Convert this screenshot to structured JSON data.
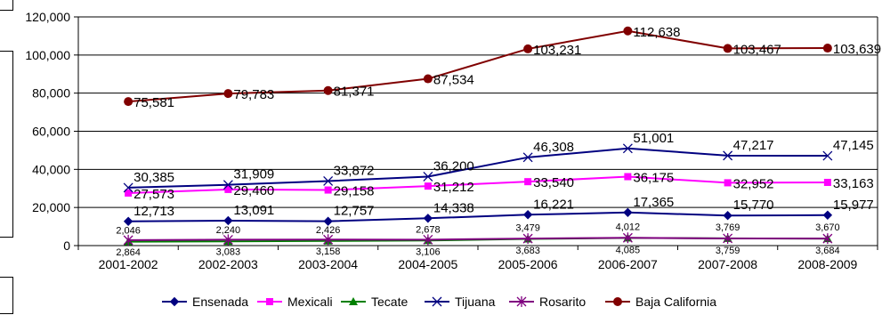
{
  "chart_data": {
    "type": "line",
    "title": "",
    "xlabel": "",
    "ylabel": "",
    "categories": [
      "2001-2002",
      "2002-2003",
      "2003-2004",
      "2004-2005",
      "2005-2006",
      "2006-2007",
      "2007-2008",
      "2008-2009"
    ],
    "ylim": [
      0,
      120000
    ],
    "y_ticks": [
      "0",
      "20,000",
      "40,000",
      "60,000",
      "80,000",
      "100,000",
      "120,000"
    ],
    "grid": "horizontal",
    "legend_position": "bottom",
    "series": [
      {
        "name": "Ensenada",
        "color": "#000080",
        "marker": "diamond",
        "values": [
          12713,
          13091,
          12757,
          14338,
          16221,
          17365,
          15770,
          15977
        ],
        "labels": [
          "12,713",
          "13,091",
          "12,757",
          "14,338",
          "16,221",
          "17,365",
          "15,770",
          "15,977"
        ]
      },
      {
        "name": "Mexicali",
        "color": "#ff00ff",
        "marker": "square",
        "values": [
          27573,
          29460,
          29158,
          31212,
          33540,
          36175,
          32952,
          33163
        ],
        "labels": [
          "27,573",
          "29,460",
          "29,158",
          "31,212",
          "33,540",
          "36,175",
          "32,952",
          "33,163"
        ]
      },
      {
        "name": "Tecate",
        "color": "#008000",
        "marker": "triangle",
        "values": [
          2046,
          2240,
          2426,
          2678,
          3479,
          4012,
          3769,
          3670
        ],
        "labels": [
          "2,046",
          "2,240",
          "2,426",
          "2,678",
          "3,479",
          "4,012",
          "3,769",
          "3,670"
        ]
      },
      {
        "name": "Tijuana",
        "color": "#000080",
        "marker": "x",
        "values": [
          30385,
          31909,
          33872,
          36200,
          46308,
          51001,
          47217,
          47145
        ],
        "labels": [
          "30,385",
          "31,909",
          "33,872",
          "36,200",
          "46,308",
          "51,001",
          "47,217",
          "47,145"
        ]
      },
      {
        "name": "Rosarito",
        "color": "#800080",
        "marker": "asterisk",
        "values": [
          2864,
          3083,
          3158,
          3106,
          3683,
          4085,
          3759,
          3684
        ],
        "labels": [
          "2,864",
          "3,083",
          "3,158",
          "3,106",
          "3,683",
          "4,085",
          "3,759",
          "3,684"
        ]
      },
      {
        "name": "Baja California",
        "color": "#800000",
        "marker": "circle",
        "values": [
          75581,
          79783,
          81371,
          87534,
          103231,
          112638,
          103467,
          103639
        ],
        "labels": [
          "75,581",
          "79,783",
          "81,371",
          "87,534",
          "103,231",
          "112,638",
          "103,467",
          "103,639"
        ]
      }
    ]
  }
}
